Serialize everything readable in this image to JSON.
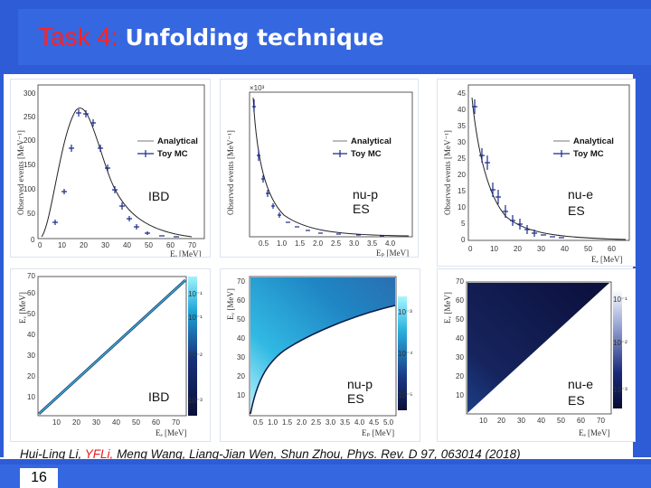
{
  "slide": {
    "title_task": "Task 4:",
    "title_rest": "Unfolding technique",
    "page_number": "16",
    "citation": {
      "before": "Hui-Ling Li, ",
      "highlight": "YFLi,",
      "after": " Meng Wang, Liang-Jian Wen, Shun Zhou, Phys. Rev. D 97, 063014 (2018)"
    }
  },
  "legend": {
    "line": "Analytical",
    "points": "Toy MC"
  },
  "panels": {
    "ibd_top": {
      "label": "IBD",
      "ylabel": "Observed events [MeV⁻¹]",
      "xlabel": "Eₑ [MeV]",
      "yticks": [
        "0",
        "50",
        "100",
        "150",
        "200",
        "250",
        "300"
      ],
      "xticks": [
        "0",
        "10",
        "20",
        "30",
        "40",
        "50",
        "60",
        "70"
      ]
    },
    "nup_top": {
      "label_line1": "nu-p",
      "label_line2": "ES",
      "ylabel": "Observed events [MeV⁻¹]",
      "xlabel": "Eₚ [MeV]",
      "yscale": "×10³",
      "xticks": [
        "0.5",
        "1.0",
        "1.5",
        "2.0",
        "2.5",
        "3.0",
        "3.5",
        "4.0"
      ]
    },
    "nue_top": {
      "label_line1": "nu-e",
      "label_line2": "ES",
      "ylabel": "Observed events [MeV⁻¹]",
      "xlabel": "Eₑ [MeV]",
      "yticks": [
        "0",
        "5",
        "10",
        "15",
        "20",
        "25",
        "30",
        "35",
        "40",
        "45"
      ],
      "xticks": [
        "0",
        "10",
        "20",
        "30",
        "40",
        "50",
        "60"
      ]
    },
    "ibd_bottom": {
      "label": "IBD",
      "ylabel": "Eᵥ [MeV]",
      "xlabel": "Eₑ [MeV]",
      "yticks": [
        "10",
        "20",
        "30",
        "40",
        "50",
        "60",
        "70"
      ],
      "xticks": [
        "10",
        "20",
        "30",
        "40",
        "50",
        "60",
        "70"
      ],
      "cticks": [
        "10⁻¹",
        "10⁻²",
        "10⁻³"
      ]
    },
    "nup_bottom": {
      "label_line1": "nu-p",
      "label_line2": "ES",
      "ylabel": "Eᵥ [MeV]",
      "xlabel": "Eₚ [MeV]",
      "yticks": [
        "10",
        "20",
        "30",
        "40",
        "50",
        "60",
        "70"
      ],
      "xticks": [
        "0.5",
        "1.0",
        "1.5",
        "2.0",
        "2.5",
        "3.0",
        "3.5",
        "4.0",
        "4.5",
        "5.0"
      ],
      "cticks": [
        "10⁻³",
        "10⁻⁴",
        "10⁻⁵"
      ]
    },
    "nue_bottom": {
      "label_line1": "nu-e",
      "label_line2": "ES",
      "ylabel": "Eᵥ [MeV]",
      "xlabel": "Eₑ [MeV]",
      "yticks": [
        "10",
        "20",
        "30",
        "40",
        "50",
        "60",
        "70"
      ],
      "xticks": [
        "10",
        "20",
        "30",
        "40",
        "50",
        "60",
        "70"
      ],
      "cticks": [
        "10⁻¹",
        "10⁻²",
        "10⁻³"
      ]
    }
  },
  "colors": {
    "header": "#3567e0",
    "title_task": "#ff2222",
    "citation_highlight": "#e81b1b",
    "curve": "#1b2a8a"
  }
}
